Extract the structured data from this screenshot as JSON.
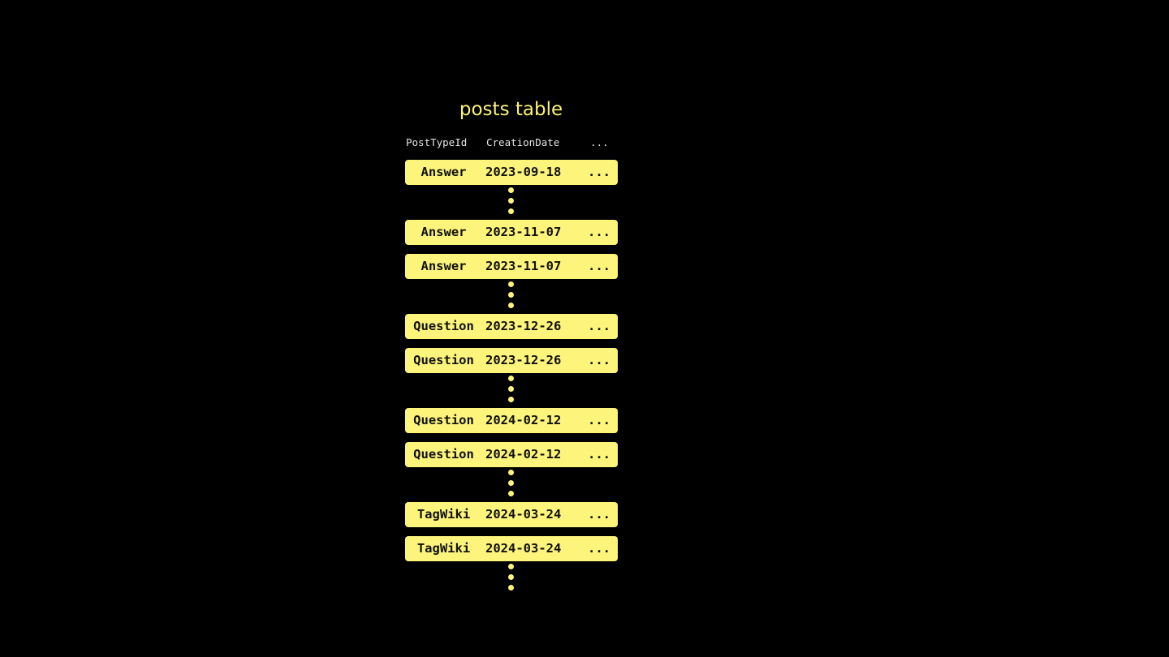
{
  "title": "posts table",
  "columns": [
    "PostTypeId",
    "CreationDate",
    "..."
  ],
  "rows": [
    {
      "post_type": "Answer",
      "creation_date": "2023-09-18",
      "more": "..."
    },
    {
      "post_type": "Answer",
      "creation_date": "2023-11-07",
      "more": "..."
    },
    {
      "post_type": "Answer",
      "creation_date": "2023-11-07",
      "more": "..."
    },
    {
      "post_type": "Question",
      "creation_date": "2023-12-26",
      "more": "..."
    },
    {
      "post_type": "Question",
      "creation_date": "2023-12-26",
      "more": "..."
    },
    {
      "post_type": "Question",
      "creation_date": "2024-02-12",
      "more": "..."
    },
    {
      "post_type": "Question",
      "creation_date": "2024-02-12",
      "more": "..."
    },
    {
      "post_type": "TagWiki",
      "creation_date": "2024-03-24",
      "more": "..."
    },
    {
      "post_type": "TagWiki",
      "creation_date": "2024-03-24",
      "more": "..."
    }
  ],
  "colors": {
    "accent": "#fdf47c",
    "background": "#000000"
  }
}
